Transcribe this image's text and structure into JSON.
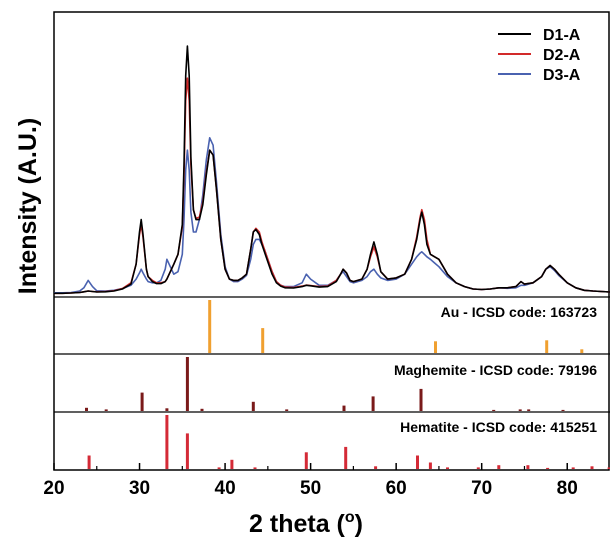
{
  "chart_data": {
    "type": "line",
    "xlabel": "2 theta (",
    "xlabel_unit": "o",
    "ylabel": "Intensity (A.U.)",
    "xlim": [
      20,
      85
    ],
    "x_ticks": [
      "20",
      "30",
      "40",
      "50",
      "60",
      "70",
      "80"
    ],
    "grid": false,
    "legend": "top-right",
    "series": [
      {
        "name": "D1-A",
        "color": "#000000",
        "x": [
          20,
          21,
          22,
          23,
          23.5,
          24,
          24.5,
          25,
          26,
          27,
          28,
          29,
          29.6,
          30,
          30.2,
          30.4,
          30.8,
          31,
          31.5,
          32,
          32.5,
          33,
          33.2,
          33.6,
          34,
          34.5,
          35,
          35.2,
          35.4,
          35.6,
          35.8,
          36,
          36.3,
          36.6,
          37,
          37.4,
          37.8,
          38.2,
          38.6,
          39,
          39.5,
          40,
          40.5,
          41,
          41.5,
          42,
          42.5,
          43,
          43.3,
          43.6,
          44,
          44.3,
          44.6,
          45,
          45.5,
          46,
          46.5,
          47,
          48,
          49,
          49.5,
          50,
          51,
          52,
          53,
          53.5,
          53.8,
          54.2,
          54.6,
          55,
          56,
          56.6,
          57,
          57.4,
          57.8,
          58.2,
          59,
          60,
          61,
          61.8,
          62.4,
          62.8,
          63,
          63.3,
          63.6,
          64,
          64.5,
          65,
          65.5,
          66,
          67,
          68,
          69,
          70,
          71,
          72,
          73,
          74,
          74.6,
          75,
          76,
          77,
          77.5,
          78,
          78.5,
          79,
          80,
          81,
          82,
          83,
          84,
          85
        ],
        "values": [
          0.3,
          0.3,
          0.4,
          0.6,
          0.9,
          1.2,
          1,
          0.8,
          0.9,
          1.2,
          2,
          4,
          12,
          25,
          30,
          24,
          10,
          7,
          5,
          4.2,
          4.2,
          5,
          6,
          9,
          12,
          16,
          28,
          52,
          88,
          100,
          88,
          55,
          34,
          30,
          30,
          36,
          48,
          58,
          56,
          42,
          22,
          10,
          6,
          5.5,
          5.5,
          6.5,
          8,
          18,
          25,
          26,
          24,
          20,
          17,
          13,
          8,
          4.5,
          3.2,
          2.5,
          2.4,
          3,
          3.5,
          3.3,
          2.8,
          3,
          5,
          8,
          10,
          8.5,
          5.5,
          5,
          6,
          10,
          16,
          21,
          16,
          9,
          6,
          6.5,
          8,
          14,
          22,
          30,
          33,
          28,
          20,
          16,
          15,
          14,
          11,
          8,
          4.5,
          3,
          2,
          1.8,
          2,
          2.5,
          2.5,
          3,
          5,
          4,
          4.5,
          7,
          10,
          11.5,
          10,
          8,
          4.5,
          2.5,
          1.5,
          1.2,
          1,
          0.8
        ]
      },
      {
        "name": "D2-A",
        "color": "#d22a2a",
        "x": [
          20,
          21,
          22,
          23,
          23.5,
          24,
          24.5,
          25,
          26,
          27,
          28,
          29,
          29.6,
          30,
          30.2,
          30.4,
          30.8,
          31,
          31.5,
          32,
          32.5,
          33,
          33.2,
          33.6,
          34,
          34.5,
          35,
          35.2,
          35.4,
          35.6,
          35.8,
          36,
          36.3,
          36.6,
          37,
          37.4,
          37.8,
          38.2,
          38.6,
          39,
          39.5,
          40,
          40.5,
          41,
          41.5,
          42,
          42.5,
          43,
          43.3,
          43.6,
          44,
          44.3,
          44.6,
          45,
          45.5,
          46,
          46.5,
          47,
          48,
          49,
          49.5,
          50,
          51,
          52,
          53,
          53.5,
          53.8,
          54.2,
          54.6,
          55,
          56,
          56.6,
          57,
          57.4,
          57.8,
          58.2,
          59,
          60,
          61,
          61.8,
          62.4,
          62.8,
          63,
          63.3,
          63.6,
          64,
          64.5,
          65,
          65.5,
          66,
          67,
          68,
          69,
          70,
          71,
          72,
          73,
          74,
          74.6,
          75,
          76,
          77,
          77.5,
          78,
          78.5,
          79,
          80,
          81,
          82,
          83,
          84,
          85
        ],
        "values": [
          0.3,
          0.3,
          0.4,
          0.6,
          0.9,
          1.2,
          1,
          0.9,
          1,
          1.3,
          2.2,
          4.5,
          12,
          24,
          28,
          23,
          10,
          7,
          5.5,
          4.5,
          4.5,
          5,
          6,
          9,
          12,
          16,
          27,
          48,
          78,
          87,
          78,
          52,
          34,
          30.5,
          31,
          37,
          49,
          58,
          56,
          42,
          22,
          10,
          6,
          5.5,
          5.5,
          6.5,
          8,
          18,
          25,
          26.5,
          25,
          21,
          18,
          14,
          9,
          5,
          3.5,
          2.8,
          2.6,
          3.2,
          3.6,
          3.4,
          3,
          3.2,
          5.5,
          8,
          10,
          8.5,
          5.5,
          5,
          6,
          10,
          15,
          19,
          15,
          9,
          6,
          6.5,
          8,
          14,
          23,
          31,
          34,
          30,
          22,
          16,
          15,
          14,
          11,
          8,
          4.5,
          3,
          2,
          1.8,
          2,
          2.5,
          2.5,
          3,
          5,
          4,
          4.5,
          7,
          10,
          11.5,
          10,
          8,
          4.5,
          2.5,
          1.5,
          1.2,
          1,
          0.8
        ]
      },
      {
        "name": "D3-A",
        "color": "#4a62b0",
        "x": [
          20,
          21,
          22,
          23,
          23.5,
          24,
          24.5,
          25,
          26,
          27,
          28,
          29,
          29.6,
          30,
          30.2,
          30.4,
          30.8,
          31,
          31.5,
          32,
          32.5,
          33,
          33.2,
          33.6,
          34,
          34.5,
          35,
          35.2,
          35.4,
          35.6,
          35.8,
          36,
          36.3,
          36.6,
          37,
          37.4,
          37.8,
          38.2,
          38.6,
          39,
          39.5,
          40,
          40.5,
          41,
          41.5,
          42,
          42.5,
          43,
          43.3,
          43.6,
          44,
          44.3,
          44.6,
          45,
          45.5,
          46,
          46.5,
          47,
          48,
          49,
          49.5,
          50,
          51,
          52,
          53,
          53.5,
          53.8,
          54.2,
          54.6,
          55,
          56,
          56.6,
          57,
          57.4,
          57.8,
          58.2,
          59,
          60,
          61,
          61.8,
          62.4,
          62.8,
          63,
          63.3,
          63.6,
          64,
          64.5,
          65,
          65.5,
          66,
          67,
          68,
          69,
          70,
          71,
          72,
          73,
          74,
          74.6,
          75,
          76,
          77,
          77.5,
          78,
          78.5,
          79,
          80,
          81,
          82,
          83,
          84,
          85
        ],
        "values": [
          0.5,
          0.5,
          0.6,
          1.2,
          2.5,
          5.5,
          3,
          1.3,
          1.2,
          1.5,
          2.2,
          3.5,
          6,
          8.5,
          10,
          8.5,
          6,
          5,
          4.5,
          4.5,
          5.5,
          10,
          14,
          11,
          8,
          9,
          16,
          30,
          50,
          58,
          50,
          33,
          25,
          25,
          30,
          40,
          54,
          63,
          60,
          45,
          24,
          11,
          6,
          5,
          5,
          6,
          7.5,
          14,
          20,
          22,
          22,
          20,
          18,
          14,
          9,
          5,
          3.5,
          3,
          3,
          4.5,
          8,
          6,
          3.5,
          3.5,
          5.5,
          8,
          9,
          7,
          5,
          4.5,
          5.5,
          7,
          9,
          10,
          8,
          6.5,
          5.5,
          6,
          8,
          12,
          15,
          16.5,
          17,
          16,
          15,
          14,
          12.5,
          11,
          9,
          7,
          4.5,
          3,
          2,
          1.8,
          2,
          2.5,
          2.3,
          2.5,
          3.5,
          3.5,
          4.5,
          7,
          10,
          11,
          9.5,
          7.5,
          4.5,
          2.5,
          1.5,
          1.2,
          1,
          0.8
        ]
      }
    ],
    "reference_panels": [
      {
        "label": "Au - ICSD code: 163723",
        "color": "#f0a030",
        "peaks": [
          [
            38.2,
            100
          ],
          [
            44.4,
            47
          ],
          [
            64.6,
            22
          ],
          [
            77.6,
            24
          ],
          [
            81.7,
            7
          ]
        ]
      },
      {
        "label": "Maghemite - ICSD code: 79196",
        "color": "#7a1a1a",
        "peaks": [
          [
            23.8,
            6
          ],
          [
            26.1,
            3
          ],
          [
            30.3,
            34
          ],
          [
            33.2,
            5
          ],
          [
            35.6,
            100
          ],
          [
            37.3,
            4
          ],
          [
            43.3,
            17
          ],
          [
            47.2,
            3
          ],
          [
            53.9,
            10
          ],
          [
            57.3,
            27
          ],
          [
            62.9,
            41
          ],
          [
            71.4,
            2
          ],
          [
            74.5,
            3
          ],
          [
            75.5,
            3
          ],
          [
            79.5,
            2
          ]
        ]
      },
      {
        "label": "Hematite - ICSD code: 415251",
        "color": "#d42a36",
        "peaks": [
          [
            24.1,
            25
          ],
          [
            33.2,
            100
          ],
          [
            35.6,
            66
          ],
          [
            39.3,
            3
          ],
          [
            40.8,
            17
          ],
          [
            43.5,
            3
          ],
          [
            49.5,
            31
          ],
          [
            54.1,
            41
          ],
          [
            57.6,
            5
          ],
          [
            62.5,
            25
          ],
          [
            64.0,
            12
          ],
          [
            66.0,
            3
          ],
          [
            69.6,
            3
          ],
          [
            72.0,
            7
          ],
          [
            75.4,
            7
          ],
          [
            77.7,
            2
          ],
          [
            80.7,
            3
          ],
          [
            82.9,
            5
          ],
          [
            84.9,
            3
          ]
        ]
      }
    ]
  }
}
